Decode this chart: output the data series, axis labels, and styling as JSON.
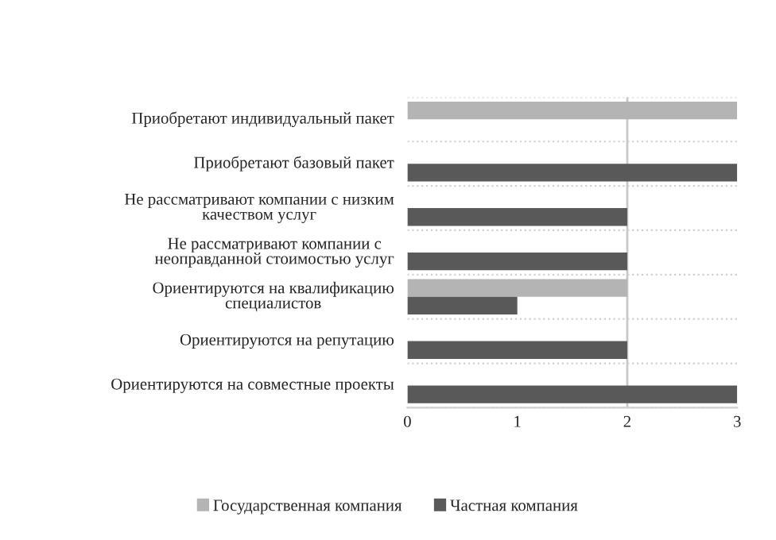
{
  "chart_data": {
    "type": "bar",
    "orientation": "horizontal",
    "categories": [
      "Приобретают индивидуальный пакет",
      "Приобретают базовый пакет",
      "Не рассматривают компании с низким\nкачеством услуг",
      "Не рассматривают компании с\nнеоправданной стоимостью услуг",
      "Ориентируются на квалификацию\nспециалистов",
      "Ориентируются на репутацию",
      "Ориентируются на совместные проекты"
    ],
    "series": [
      {
        "name": "Государственная компания",
        "color": "#b4b4b4",
        "values": [
          3,
          null,
          null,
          null,
          2,
          null,
          null
        ]
      },
      {
        "name": "Частная компания",
        "color": "#595959",
        "values": [
          null,
          3,
          2,
          2,
          1,
          2,
          3
        ]
      }
    ],
    "xlim": [
      0,
      3
    ],
    "xticks": [
      0,
      1,
      2,
      3
    ],
    "ref_lines": [
      {
        "axis": "x",
        "value": 2,
        "color": "#c8c8c8"
      }
    ],
    "legend": "bottom"
  }
}
